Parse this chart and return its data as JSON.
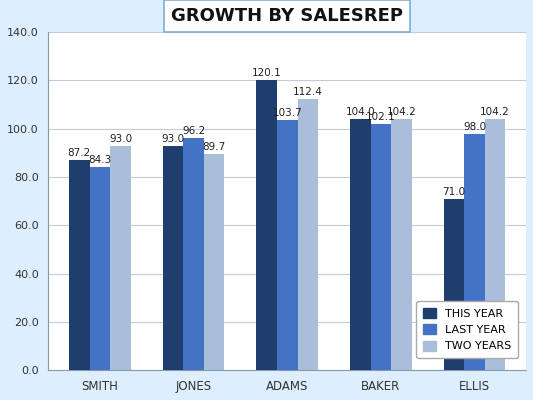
{
  "title": "GROWTH BY SALESREP",
  "categories": [
    "SMITH",
    "JONES",
    "ADAMS",
    "BAKER",
    "ELLIS"
  ],
  "series": {
    "THIS YEAR": [
      87.2,
      93.0,
      120.1,
      104.0,
      71.0
    ],
    "LAST YEAR": [
      84.3,
      96.2,
      103.7,
      102.1,
      98.0
    ],
    "TWO YEARS": [
      93.0,
      89.7,
      112.4,
      104.2,
      104.2
    ]
  },
  "colors": {
    "THIS YEAR": "#1F3E6E",
    "LAST YEAR": "#4472C4",
    "TWO YEARS": "#A9BFD9"
  },
  "ylim": [
    0,
    140
  ],
  "yticks": [
    0,
    20.0,
    40.0,
    60.0,
    80.0,
    100.0,
    120.0,
    140.0
  ],
  "plot_bg_color": "#FFFFFF",
  "outer_bg_color": "#DDEEFF",
  "title_fontsize": 13,
  "label_fontsize": 7.5,
  "legend_fontsize": 8,
  "bar_width": 0.22,
  "grid_color": "#C0CCE0",
  "spine_color": "#8899AA"
}
